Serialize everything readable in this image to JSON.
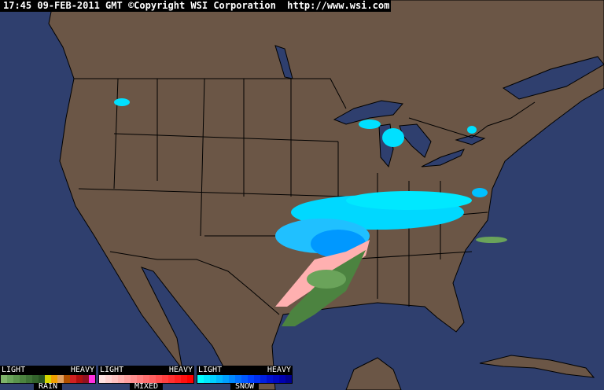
{
  "header": {
    "timestamp": "17:45 09-FEB-2011 GMT",
    "copyright": "©Copyright WSI Corporation",
    "url": "http://www.wsi.com"
  },
  "colors": {
    "ocean": "#2f3f6e",
    "land": "#6b5646",
    "border": "#000000"
  },
  "legends": [
    {
      "name": "RAIN",
      "light": "LIGHT",
      "heavy": "HEAVY",
      "colors": [
        "#7fb36a",
        "#6aa35a",
        "#5a934c",
        "#4c8340",
        "#3f7336",
        "#33632c",
        "#275322",
        "#d6d600",
        "#f0a000",
        "#e0a060",
        "#b05000",
        "#d02020",
        "#b01010",
        "#901020",
        "#ff30e0"
      ]
    },
    {
      "name": "MIXED",
      "light": "LIGHT",
      "heavy": "HEAVY",
      "colors": [
        "#ffe0e0",
        "#ffd0d0",
        "#ffc0c0",
        "#ffb0b0",
        "#ffa0a0",
        "#ff9090",
        "#ff8080",
        "#ff7070",
        "#ff6060",
        "#ff5050",
        "#ff4040",
        "#ff3030",
        "#ff2020",
        "#ff1010",
        "#ff0000"
      ]
    },
    {
      "name": "SNOW",
      "light": "LIGHT",
      "heavy": "HEAVY",
      "colors": [
        "#00ffff",
        "#00e8ff",
        "#00d0ff",
        "#00b8ff",
        "#00a0ff",
        "#0088ff",
        "#0070ff",
        "#0058ff",
        "#0040ff",
        "#0030f0",
        "#0020e0",
        "#0010d0",
        "#0008c0",
        "#0000b0",
        "#000090"
      ]
    }
  ]
}
